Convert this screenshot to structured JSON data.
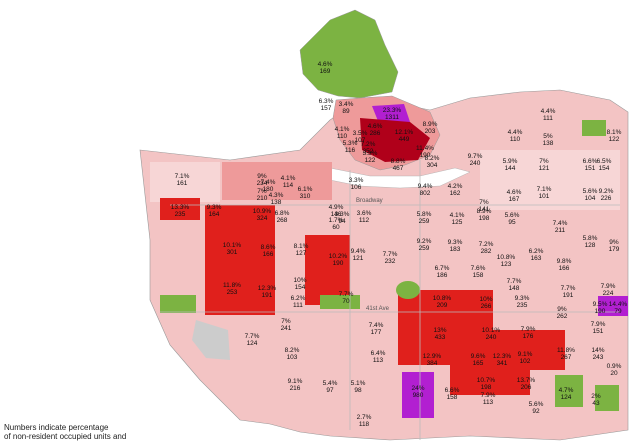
{
  "caption": {
    "line1": "Numbers indicate percentage",
    "line2": "of non-resident occupied units and"
  },
  "colors": {
    "water": "#ffffff",
    "land_base": "#f3c4c4",
    "pale": "#f7d6d6",
    "pink": "#ee9a9a",
    "red": "#e0201c",
    "dark_red": "#b0001a",
    "purple": "#b21fd1",
    "park": "#7cb342",
    "gray": "#cccccc",
    "line": "#777777"
  },
  "roads": {
    "broadway": "Broadway",
    "forty_first": "41st Ave"
  },
  "labels": [
    {
      "pct": "4.6%",
      "n": "169"
    },
    {
      "pct": "6.3%",
      "n": "157"
    },
    {
      "pct": "3.4%",
      "n": "89"
    },
    {
      "pct": "23.3%",
      "n": "1311"
    },
    {
      "pct": "4.6%",
      "n": "286"
    },
    {
      "pct": "8.9%",
      "n": "203"
    },
    {
      "pct": "4.4%",
      "n": "111"
    },
    {
      "pct": "4.1%",
      "n": "110"
    },
    {
      "pct": "3.5%",
      "n": "107"
    },
    {
      "pct": "5.3%",
      "n": "116"
    },
    {
      "pct": "7.2%",
      "n": "352"
    },
    {
      "pct": "12.1%",
      "n": "449"
    },
    {
      "pct": "4.4%",
      "n": "110"
    },
    {
      "pct": "5%",
      "n": "138"
    },
    {
      "pct": "8.1%",
      "n": "122"
    },
    {
      "pct": "3.3%",
      "n": "122"
    },
    {
      "pct": "11.4%",
      "n": "190"
    },
    {
      "pct": "9.7%",
      "n": "240"
    },
    {
      "pct": "8.8%",
      "n": "467"
    },
    {
      "pct": "8.2%",
      "n": "304"
    },
    {
      "pct": "7.1%",
      "n": "161"
    },
    {
      "pct": "9%",
      "n": "234"
    },
    {
      "pct": "7.4%",
      "n": "180"
    },
    {
      "pct": "4.1%",
      "n": "114"
    },
    {
      "pct": "5.9%",
      "n": "144"
    },
    {
      "pct": "7%",
      "n": "121"
    },
    {
      "pct": "6.6%",
      "n": "151"
    },
    {
      "pct": "6.5%",
      "n": "154"
    },
    {
      "pct": "7%",
      "n": "210"
    },
    {
      "pct": "4.3%",
      "n": "138"
    },
    {
      "pct": "6.1%",
      "n": "310"
    },
    {
      "pct": "3.3%",
      "n": "106"
    },
    {
      "pct": "9.4%",
      "n": "802"
    },
    {
      "pct": "4.2%",
      "n": "162"
    },
    {
      "pct": "4.6%",
      "n": "167"
    },
    {
      "pct": "7.1%",
      "n": "101"
    },
    {
      "pct": "5.6%",
      "n": "104"
    },
    {
      "pct": "9.2%",
      "n": "226"
    },
    {
      "pct": "13.3%",
      "n": "235"
    },
    {
      "pct": "9.3%",
      "n": "164"
    },
    {
      "pct": "10.9%",
      "n": "324"
    },
    {
      "pct": "6.8%",
      "n": "268"
    },
    {
      "pct": "4.9%",
      "n": "146"
    },
    {
      "pct": "7%",
      "n": "141"
    },
    {
      "pct": "8.9%",
      "n": "198"
    },
    {
      "pct": "3.3%",
      "n": "94"
    },
    {
      "pct": "1.7%",
      "n": "60"
    },
    {
      "pct": "3.6%",
      "n": "112"
    },
    {
      "pct": "5.8%",
      "n": "259"
    },
    {
      "pct": "4.1%",
      "n": "125"
    },
    {
      "pct": "5.6%",
      "n": "95"
    },
    {
      "pct": "7.4%",
      "n": "211"
    },
    {
      "pct": "5.8%",
      "n": "128"
    },
    {
      "pct": "9%",
      "n": "179"
    },
    {
      "pct": "10.1%",
      "n": "301"
    },
    {
      "pct": "8.6%",
      "n": "166"
    },
    {
      "pct": "8.1%",
      "n": "127"
    },
    {
      "pct": "10.2%",
      "n": "190"
    },
    {
      "pct": "9.4%",
      "n": "121"
    },
    {
      "pct": "7.7%",
      "n": "232"
    },
    {
      "pct": "9.2%",
      "n": "259"
    },
    {
      "pct": "9.3%",
      "n": "183"
    },
    {
      "pct": "7.2%",
      "n": "282"
    },
    {
      "pct": "10.8%",
      "n": "123"
    },
    {
      "pct": "6.2%",
      "n": "163"
    },
    {
      "pct": "9.8%",
      "n": "166"
    },
    {
      "pct": "10%",
      "n": "154"
    },
    {
      "pct": "6.7%",
      "n": "186"
    },
    {
      "pct": "7.6%",
      "n": "158"
    },
    {
      "pct": "7.7%",
      "n": "148"
    },
    {
      "pct": "7.7%",
      "n": "191"
    },
    {
      "pct": "7.9%",
      "n": "224"
    },
    {
      "pct": "11.8%",
      "n": "253"
    },
    {
      "pct": "12.3%",
      "n": "191"
    },
    {
      "pct": "6.2%",
      "n": "111"
    },
    {
      "pct": "7.7%",
      "n": "70"
    },
    {
      "pct": "10.8%",
      "n": "209"
    },
    {
      "pct": "10%",
      "n": "266"
    },
    {
      "pct": "9.3%",
      "n": "235"
    },
    {
      "pct": "9%",
      "n": "262"
    },
    {
      "pct": "9.5%",
      "n": "190"
    },
    {
      "pct": "14.4%",
      "n": "79"
    },
    {
      "pct": "7%",
      "n": "241"
    },
    {
      "pct": "7.4%",
      "n": "177"
    },
    {
      "pct": "13%",
      "n": "433"
    },
    {
      "pct": "10.1%",
      "n": "240"
    },
    {
      "pct": "7.9%",
      "n": "176"
    },
    {
      "pct": "7.9%",
      "n": "151"
    },
    {
      "pct": "7.7%",
      "n": "124"
    },
    {
      "pct": "8.2%",
      "n": "103"
    },
    {
      "pct": "6.4%",
      "n": "113"
    },
    {
      "pct": "12.9%",
      "n": "384"
    },
    {
      "pct": "9.6%",
      "n": "165"
    },
    {
      "pct": "12.3%",
      "n": "341"
    },
    {
      "pct": "9.1%",
      "n": "102"
    },
    {
      "pct": "11.8%",
      "n": "267"
    },
    {
      "pct": "14%",
      "n": "243"
    },
    {
      "pct": "0.9%",
      "n": "20"
    },
    {
      "pct": "9.1%",
      "n": "216"
    },
    {
      "pct": "5.4%",
      "n": "97"
    },
    {
      "pct": "5.1%",
      "n": "98"
    },
    {
      "pct": "24%",
      "n": "980"
    },
    {
      "pct": "6.6%",
      "n": "158"
    },
    {
      "pct": "10.7%",
      "n": "198"
    },
    {
      "pct": "13.7%",
      "n": "206"
    },
    {
      "pct": "4.7%",
      "n": "124"
    },
    {
      "pct": "2%",
      "n": "43"
    },
    {
      "pct": "7.9%",
      "n": "113"
    },
    {
      "pct": "5.6%",
      "n": "92"
    },
    {
      "pct": "2.7%",
      "n": "118"
    }
  ]
}
